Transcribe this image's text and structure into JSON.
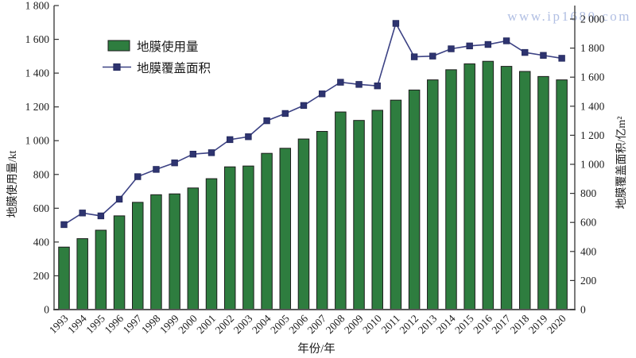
{
  "watermark": {
    "text": "www.ip1680.com"
  },
  "chart_data": {
    "type": "bar",
    "subtype": "combo-bar-line-dual-axis",
    "title": "",
    "xlabel": "年份/年",
    "grid": false,
    "categories": [
      "1993",
      "1994",
      "1995",
      "1996",
      "1997",
      "1998",
      "1999",
      "2000",
      "2001",
      "2002",
      "2003",
      "2004",
      "2005",
      "2006",
      "2007",
      "2008",
      "2009",
      "2010",
      "2011",
      "2012",
      "2013",
      "2014",
      "2015",
      "2016",
      "2017",
      "2018",
      "2019",
      "2020"
    ],
    "series": [
      {
        "name": "地膜使用量",
        "type": "bar",
        "axis": "left",
        "unit": "kt",
        "values": [
          370,
          420,
          470,
          555,
          635,
          680,
          685,
          720,
          775,
          845,
          850,
          925,
          955,
          1010,
          1055,
          1170,
          1120,
          1180,
          1240,
          1300,
          1360,
          1420,
          1455,
          1470,
          1440,
          1410,
          1380,
          1360
        ]
      },
      {
        "name": "地膜覆盖面积",
        "type": "line",
        "axis": "right",
        "unit": "亿m²",
        "marker": "square",
        "values": [
          585,
          665,
          645,
          760,
          915,
          965,
          1010,
          1070,
          1080,
          1170,
          1190,
          1300,
          1350,
          1405,
          1485,
          1565,
          1550,
          1540,
          1970,
          1740,
          1745,
          1795,
          1815,
          1825,
          1850,
          1770,
          1750,
          1730
        ]
      }
    ],
    "left_axis": {
      "label": "地膜使用量/kt",
      "min": 0,
      "max": 1800,
      "step": 200,
      "tick_labels": [
        "0",
        "200",
        "400",
        "600",
        "800",
        "1 000",
        "1 200",
        "1 400",
        "1 600",
        "1 800"
      ]
    },
    "right_axis": {
      "label": "地膜覆盖面积/亿m²",
      "min": 0,
      "max": 2000,
      "step": 200,
      "top_of_spine_value": 2095,
      "tick_labels": [
        "0",
        "200",
        "400",
        "600",
        "800",
        "1 000",
        "1 200",
        "1 400",
        "1 600",
        "1 800",
        "2 000"
      ]
    },
    "legend": {
      "position": "upper-left-inside",
      "items": [
        "地膜使用量",
        "地膜覆盖面积"
      ]
    },
    "colors": {
      "bar_fill": "#2e7d3f",
      "bar_border": "#1c1c1c",
      "line": "#3c4284",
      "marker_fill": "#2e3470",
      "marker_border": "#23285c",
      "axis": "#595959",
      "text": "#1a1a1a",
      "watermark": "#9eafdc"
    }
  }
}
